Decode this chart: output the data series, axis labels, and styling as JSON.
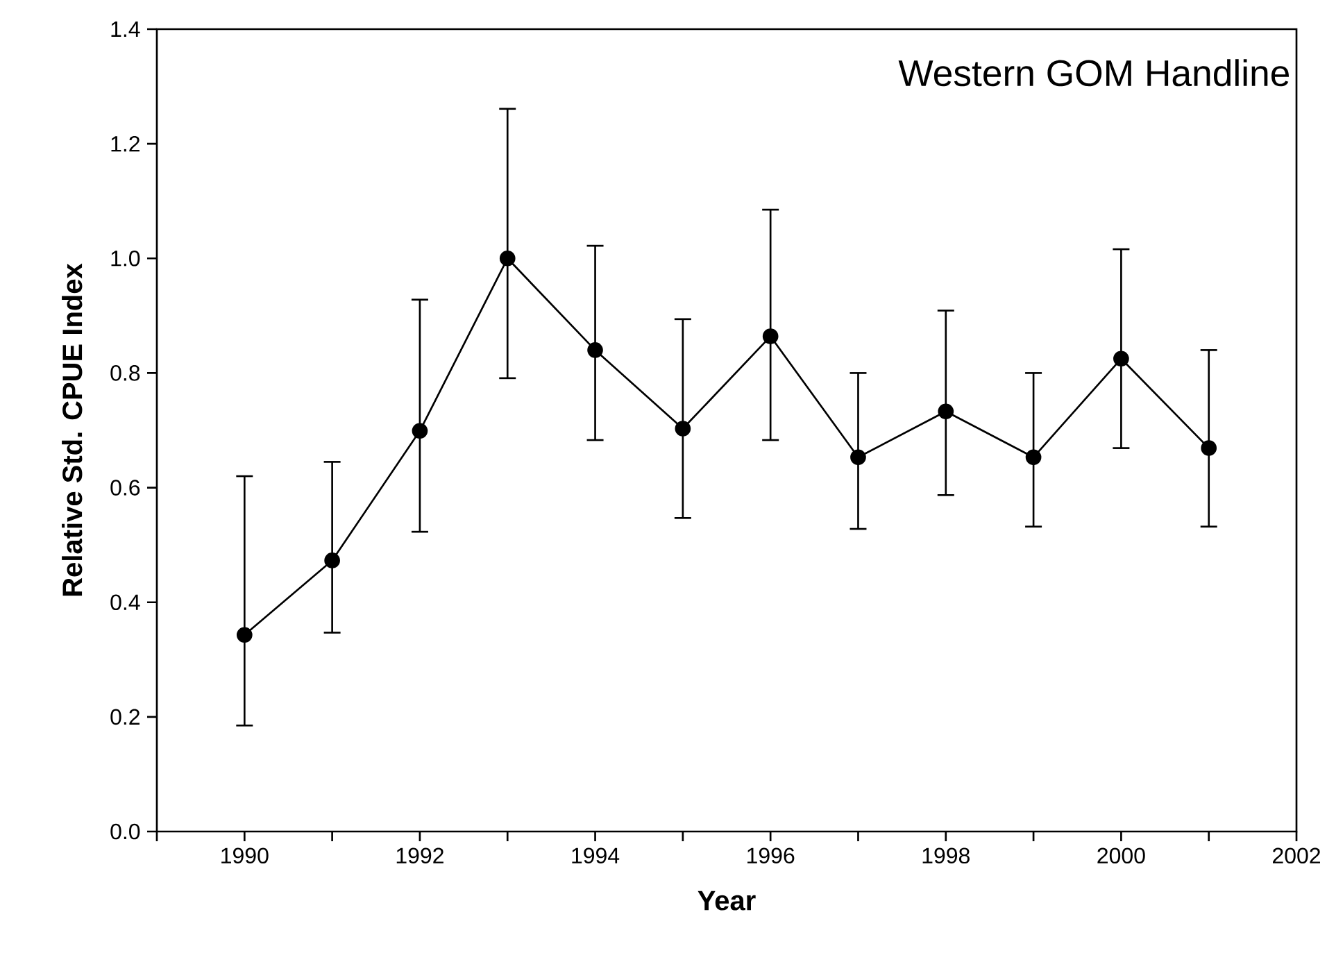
{
  "chart_data": {
    "type": "line",
    "title": "Western GOM Handline",
    "xlabel": "Year",
    "ylabel": "Relative Std. CPUE Index",
    "x": [
      1990,
      1991,
      1992,
      1993,
      1994,
      1995,
      1996,
      1997,
      1998,
      1999,
      2000,
      2001
    ],
    "series": [
      {
        "color": "#000000",
        "values": [
          0.343,
          0.473,
          0.699,
          1.0,
          0.84,
          0.703,
          0.864,
          0.653,
          0.733,
          0.653,
          0.825,
          0.669
        ],
        "errors": [
          [
            0.185,
            0.62
          ],
          [
            0.347,
            0.645
          ],
          [
            0.523,
            0.928
          ],
          [
            0.791,
            1.261
          ],
          [
            0.683,
            1.022
          ],
          [
            0.547,
            0.894
          ],
          [
            0.683,
            1.085
          ],
          [
            0.528,
            0.8
          ],
          [
            0.587,
            0.909
          ],
          [
            0.532,
            0.8
          ],
          [
            0.669,
            1.016
          ],
          [
            0.532,
            0.84
          ]
        ]
      }
    ],
    "marker": "circle",
    "line_style": "solid",
    "grid": false,
    "xlim": [
      1989,
      2002
    ],
    "ylim": [
      0,
      1.4
    ],
    "xticks": [
      {
        "value": 1989,
        "label": null
      },
      1990,
      {
        "value": 1991,
        "label": null
      },
      1992,
      {
        "value": 1993,
        "label": null
      },
      1994,
      {
        "value": 1995,
        "label": null
      },
      1996,
      {
        "value": 1997,
        "label": null
      },
      1998,
      {
        "value": 1999,
        "label": null
      },
      2000,
      {
        "value": 2001,
        "label": null
      },
      2002
    ],
    "yticks": [
      {
        "value": 0,
        "label": "0.0"
      },
      0.2,
      0.4,
      0.6,
      0.8,
      {
        "value": 1.0,
        "label": "1.0"
      },
      1.2,
      1.4
    ]
  }
}
